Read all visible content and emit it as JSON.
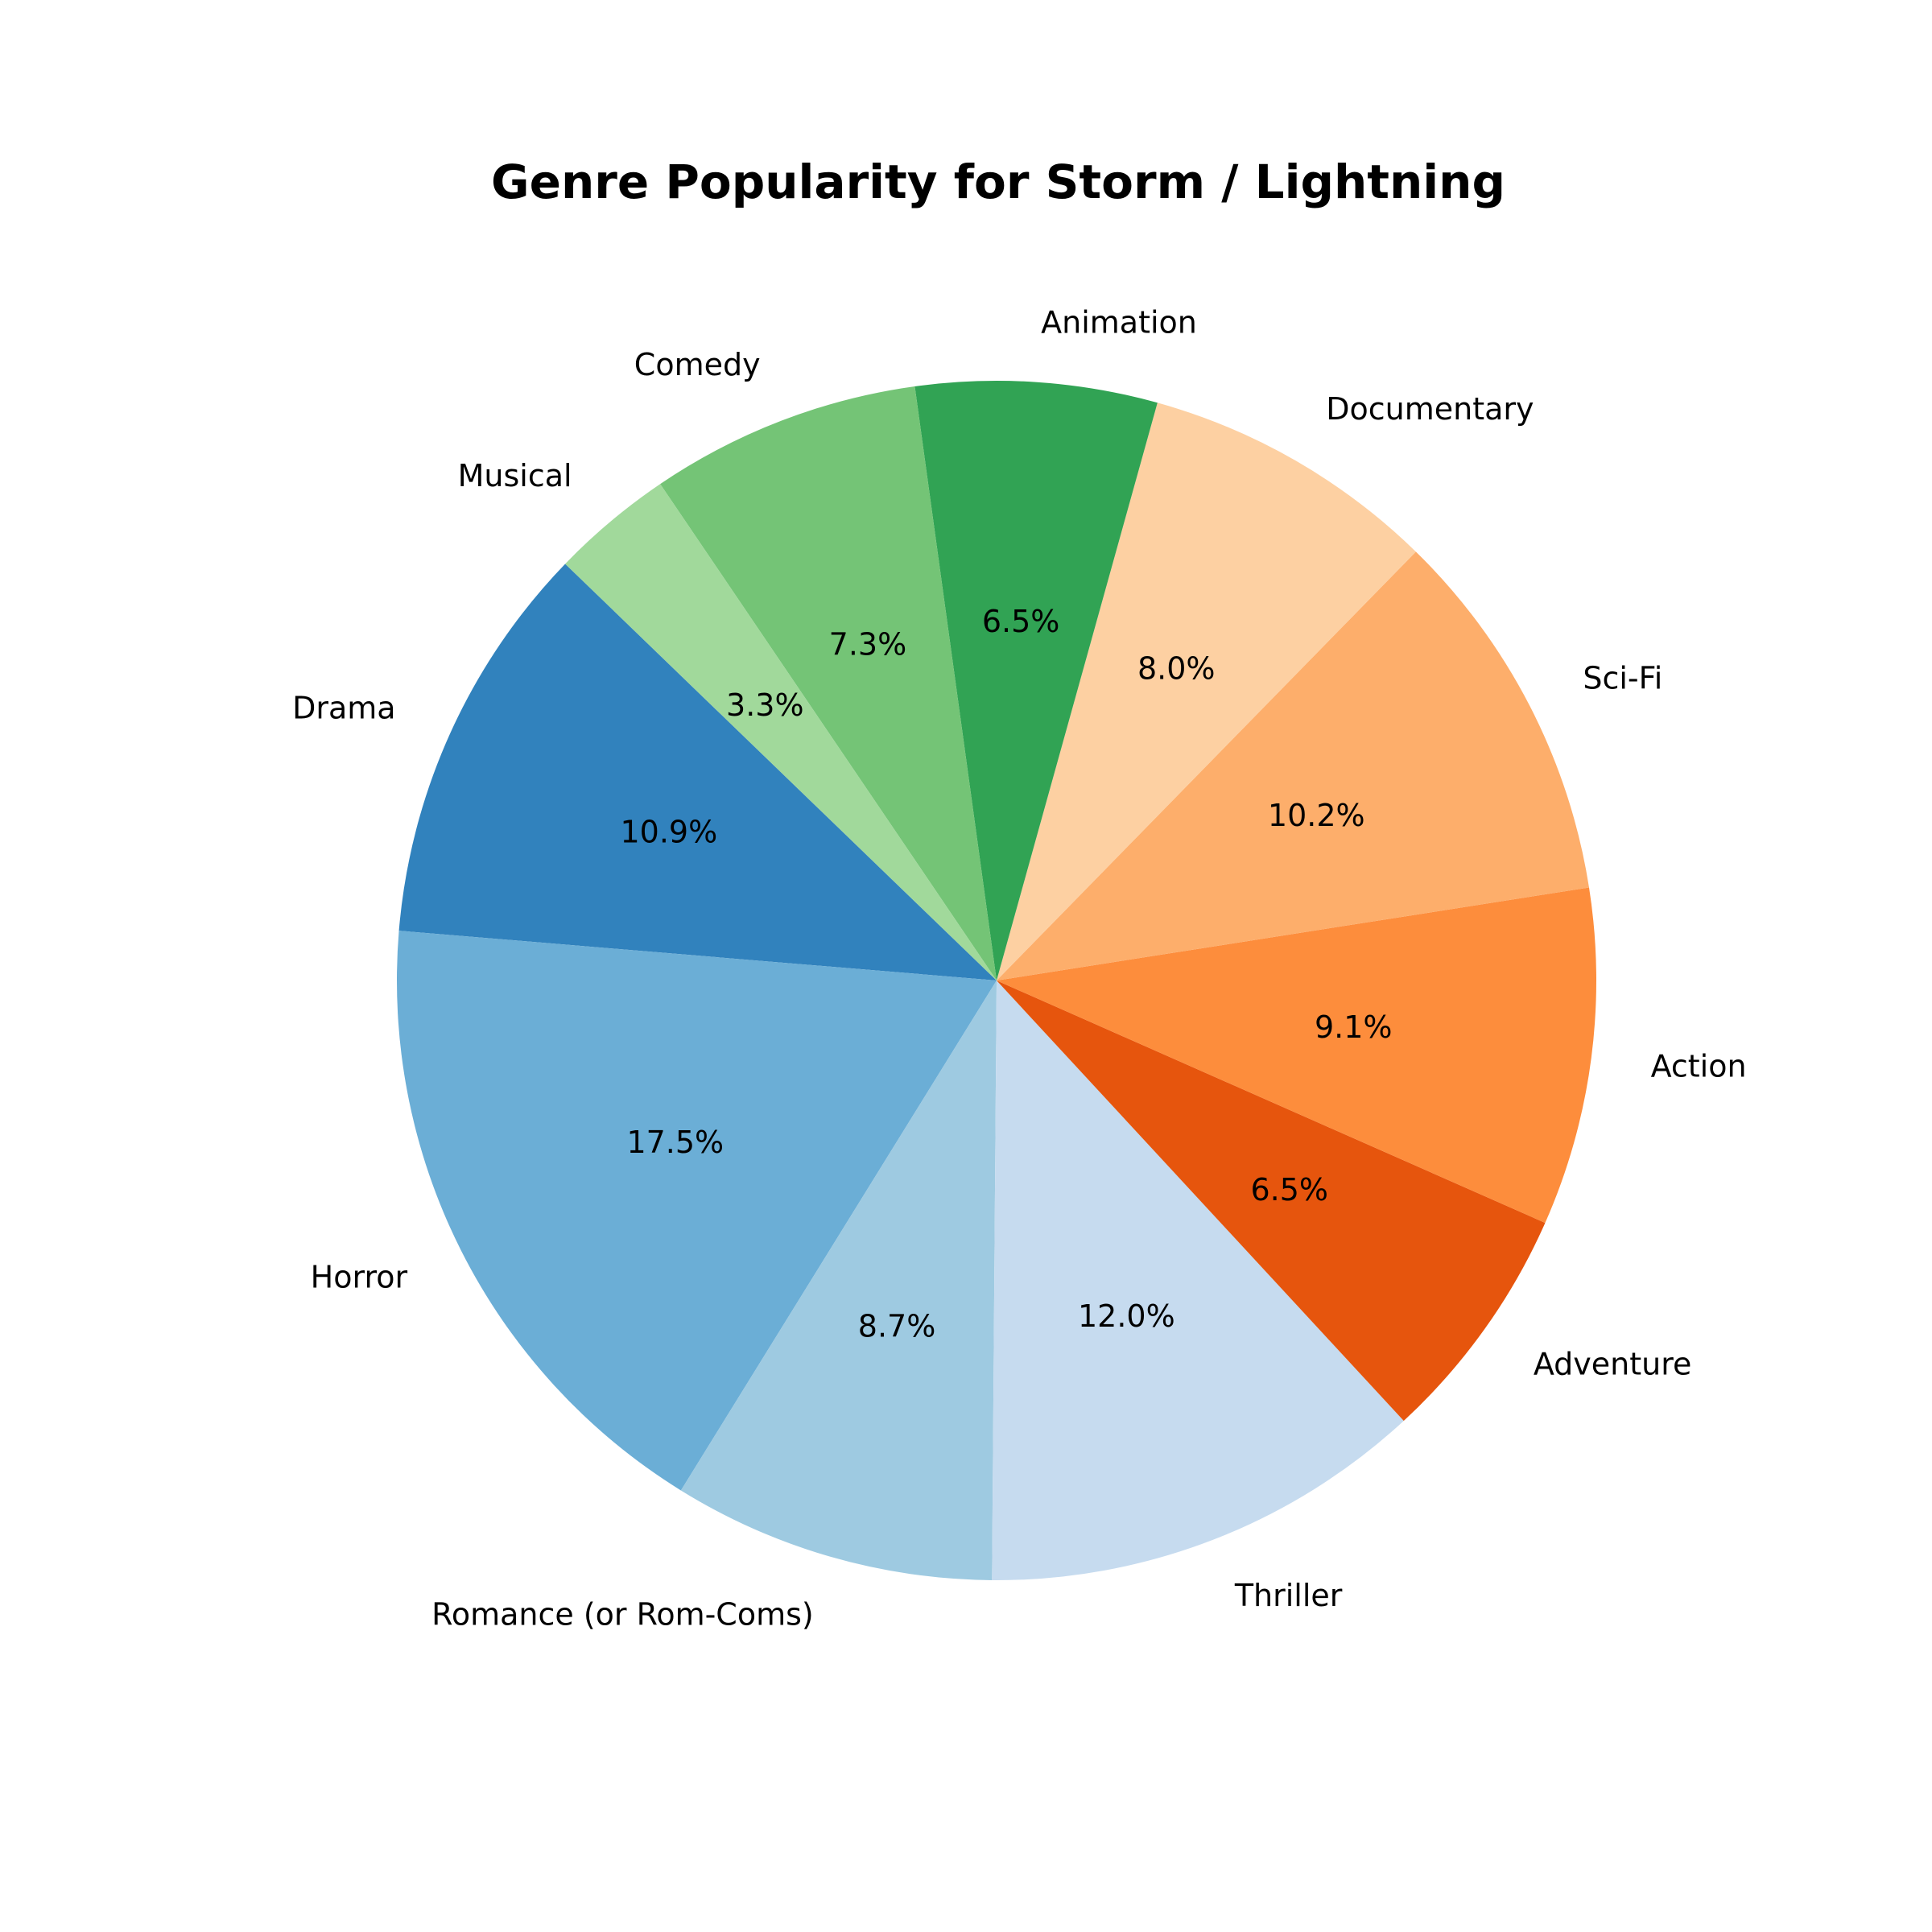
{
  "chart_data": {
    "type": "pie",
    "title": "Genre Popularity for Storm / Lightning",
    "start_angle_deg": 136,
    "direction": "counterclockwise",
    "slices": [
      {
        "label": "Drama",
        "percent": 10.9,
        "display": "10.9%",
        "color": "#3182bd"
      },
      {
        "label": "Horror",
        "percent": 17.5,
        "display": "17.5%",
        "color": "#6baed6"
      },
      {
        "label": "Romance (or Rom-Coms)",
        "percent": 8.7,
        "display": "8.7%",
        "color": "#9ecae1"
      },
      {
        "label": "Thriller",
        "percent": 12.0,
        "display": "12.0%",
        "color": "#c6dbef"
      },
      {
        "label": "Adventure",
        "percent": 6.5,
        "display": "6.5%",
        "color": "#e6550d"
      },
      {
        "label": "Action",
        "percent": 9.1,
        "display": "9.1%",
        "color": "#fd8d3c"
      },
      {
        "label": "Sci-Fi",
        "percent": 10.2,
        "display": "10.2%",
        "color": "#fdae6b"
      },
      {
        "label": "Documentary",
        "percent": 8.0,
        "display": "8.0%",
        "color": "#fdd0a2"
      },
      {
        "label": "Animation",
        "percent": 6.5,
        "display": "6.5%",
        "color": "#31a354"
      },
      {
        "label": "Comedy",
        "percent": 7.3,
        "display": "7.3%",
        "color": "#74c476"
      },
      {
        "label": "Musical",
        "percent": 3.3,
        "display": "3.3%",
        "color": "#a1d99b"
      }
    ]
  }
}
